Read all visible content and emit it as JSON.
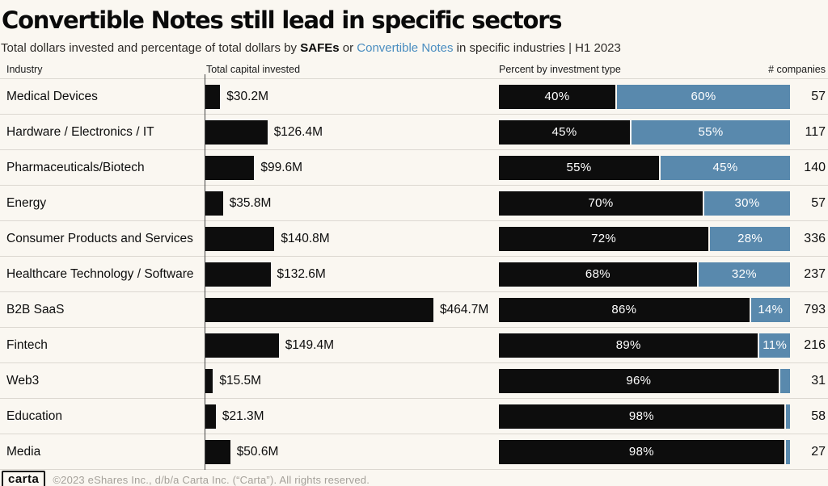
{
  "header": {
    "title": "Convertible Notes still lead in specific sectors",
    "subtitle": {
      "prefix": "Total dollars invested and percentage of total dollars by ",
      "safes_label": "SAFEs",
      "middle": " or ",
      "convertible_label": "Convertible Notes",
      "suffix": " in specific industries | H1 2023"
    }
  },
  "columns": {
    "industry": "Industry",
    "capital": "Total capital invested",
    "percent": "Percent by investment type",
    "companies": "# companies"
  },
  "colors": {
    "safe_bar": "#0d0d0d",
    "convertible_bar": "#5989ad",
    "accent_text": "#4a8dc0",
    "background": "#faf7f1"
  },
  "rows": [
    {
      "industry": "Medical Devices",
      "capital_label": "$30.2M",
      "capital_value": 30.2,
      "safe_pct": 40,
      "note_pct": 60,
      "safe_label": "40%",
      "note_label": "60%",
      "companies": "57"
    },
    {
      "industry": "Hardware / Electronics / IT",
      "capital_label": "$126.4M",
      "capital_value": 126.4,
      "safe_pct": 45,
      "note_pct": 55,
      "safe_label": "45%",
      "note_label": "55%",
      "companies": "117"
    },
    {
      "industry": "Pharmaceuticals/Biotech",
      "capital_label": "$99.6M",
      "capital_value": 99.6,
      "safe_pct": 55,
      "note_pct": 45,
      "safe_label": "55%",
      "note_label": "45%",
      "companies": "140"
    },
    {
      "industry": "Energy",
      "capital_label": "$35.8M",
      "capital_value": 35.8,
      "safe_pct": 70,
      "note_pct": 30,
      "safe_label": "70%",
      "note_label": "30%",
      "companies": "57"
    },
    {
      "industry": "Consumer Products and Services",
      "capital_label": "$140.8M",
      "capital_value": 140.8,
      "safe_pct": 72,
      "note_pct": 28,
      "safe_label": "72%",
      "note_label": "28%",
      "companies": "336"
    },
    {
      "industry": "Healthcare Technology / Software",
      "capital_label": "$132.6M",
      "capital_value": 132.6,
      "safe_pct": 68,
      "note_pct": 32,
      "safe_label": "68%",
      "note_label": "32%",
      "companies": "237"
    },
    {
      "industry": "B2B SaaS",
      "capital_label": "$464.7M",
      "capital_value": 464.7,
      "safe_pct": 86,
      "note_pct": 14,
      "safe_label": "86%",
      "note_label": "14%",
      "companies": "793"
    },
    {
      "industry": "Fintech",
      "capital_label": "$149.4M",
      "capital_value": 149.4,
      "safe_pct": 89,
      "note_pct": 11,
      "safe_label": "89%",
      "note_label": "11%",
      "companies": "216"
    },
    {
      "industry": "Web3",
      "capital_label": "$15.5M",
      "capital_value": 15.5,
      "safe_pct": 96,
      "note_pct": 4,
      "safe_label": "96%",
      "note_label": "",
      "companies": "31"
    },
    {
      "industry": "Education",
      "capital_label": "$21.3M",
      "capital_value": 21.3,
      "safe_pct": 98,
      "note_pct": 2,
      "safe_label": "98%",
      "note_label": "",
      "companies": "58"
    },
    {
      "industry": "Media",
      "capital_label": "$50.6M",
      "capital_value": 50.6,
      "safe_pct": 98,
      "note_pct": 2,
      "safe_label": "98%",
      "note_label": "",
      "companies": "27"
    }
  ],
  "chart_data": {
    "type": "bar",
    "title": "Convertible Notes still lead in specific sectors",
    "subtitle": "Total dollars invested and percentage of total dollars by SAFEs or Convertible Notes in specific industries | H1 2023",
    "categories": [
      "Medical Devices",
      "Hardware / Electronics / IT",
      "Pharmaceuticals/Biotech",
      "Energy",
      "Consumer Products and Services",
      "Healthcare Technology / Software",
      "B2B SaaS",
      "Fintech",
      "Web3",
      "Education",
      "Media"
    ],
    "series": [
      {
        "name": "Total capital invested ($M)",
        "values": [
          30.2,
          126.4,
          99.6,
          35.8,
          140.8,
          132.6,
          464.7,
          149.4,
          15.5,
          21.3,
          50.6
        ]
      },
      {
        "name": "SAFE percent",
        "values": [
          40,
          45,
          55,
          70,
          72,
          68,
          86,
          89,
          96,
          98,
          98
        ]
      },
      {
        "name": "Convertible Note percent",
        "values": [
          60,
          55,
          45,
          30,
          28,
          32,
          14,
          11,
          4,
          2,
          2
        ]
      },
      {
        "name": "# companies",
        "values": [
          57,
          117,
          140,
          57,
          336,
          237,
          793,
          216,
          31,
          58,
          27
        ]
      }
    ],
    "legend_position": "subtitle-inline",
    "grid": false,
    "orientation": "horizontal",
    "percent_axis_range": [
      0,
      100
    ]
  },
  "footer": {
    "logo": "carta",
    "copyright": "©2023 eShares Inc., d/b/a Carta Inc. (“Carta”). All rights reserved."
  }
}
